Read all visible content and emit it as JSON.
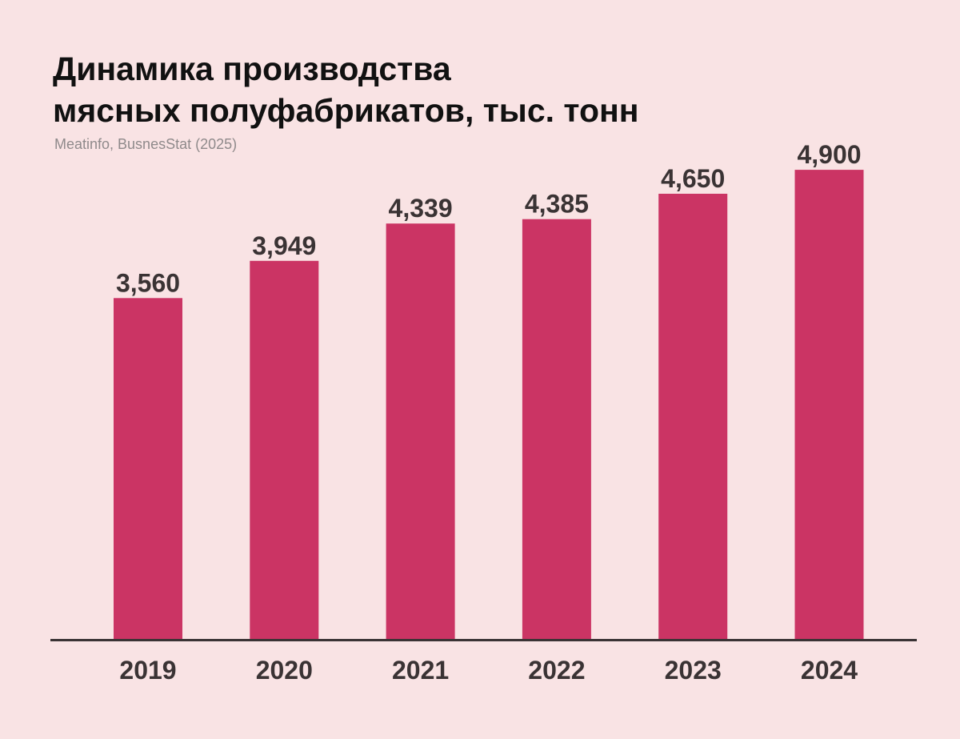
{
  "header": {
    "title_line1": "Динамика производства",
    "title_line2": "мясных полуфабрикатов, тыс. тонн",
    "source": "Meatinfo, BusnesStat (2025)"
  },
  "chart_data": {
    "type": "bar",
    "title": "Динамика производства мясных полуфабрикатов, тыс. тонн",
    "categories": [
      "2019",
      "2020",
      "2021",
      "2022",
      "2023",
      "2024"
    ],
    "values": [
      3560,
      3949,
      4339,
      4385,
      4650,
      4900
    ],
    "value_labels": [
      "3,560",
      "3,949",
      "4,339",
      "4,385",
      "4,650",
      "4,900"
    ],
    "ylim": [
      0,
      5670
    ],
    "grid": false,
    "legend": "none",
    "xlabel": "",
    "ylabel": ""
  },
  "colors": {
    "background": "#f9e3e4",
    "bar": "#cb3464",
    "axis": "#3a3334",
    "label": "#3a3334",
    "title": "#111111",
    "source": "#8f8a8b"
  }
}
